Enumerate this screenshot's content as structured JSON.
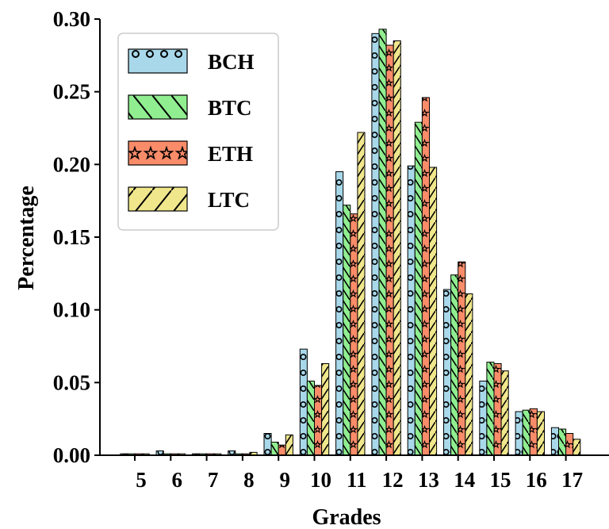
{
  "chart_data": {
    "type": "bar",
    "title": "",
    "xlabel": "Grades",
    "ylabel": "Percentage",
    "ylim": [
      0,
      0.3
    ],
    "yticks": [
      "0.00",
      "0.05",
      "0.10",
      "0.15",
      "0.20",
      "0.25",
      "0.30"
    ],
    "categories": [
      "5",
      "6",
      "7",
      "8",
      "9",
      "10",
      "11",
      "12",
      "13",
      "14",
      "15",
      "16",
      "17"
    ],
    "legend_position": "top-left",
    "grid": false,
    "series": [
      {
        "name": "BCH",
        "color": "#a8d8ea",
        "pattern": "circles",
        "values": [
          0.001,
          0.003,
          0.001,
          0.003,
          0.015,
          0.073,
          0.195,
          0.29,
          0.199,
          0.114,
          0.051,
          0.03,
          0.019
        ]
      },
      {
        "name": "BTC",
        "color": "#90ee90",
        "pattern": "backslash",
        "values": [
          0.001,
          0.001,
          0.001,
          0.001,
          0.009,
          0.051,
          0.172,
          0.293,
          0.229,
          0.124,
          0.064,
          0.031,
          0.018
        ]
      },
      {
        "name": "ETH",
        "color": "#fa8c6a",
        "pattern": "stars",
        "values": [
          0.001,
          0.001,
          0.001,
          0.001,
          0.007,
          0.048,
          0.166,
          0.282,
          0.246,
          0.133,
          0.063,
          0.032,
          0.015
        ]
      },
      {
        "name": "LTC",
        "color": "#f0e68c",
        "pattern": "slash",
        "values": [
          0.001,
          0.001,
          0.001,
          0.002,
          0.014,
          0.063,
          0.222,
          0.285,
          0.198,
          0.111,
          0.058,
          0.03,
          0.011
        ]
      }
    ]
  }
}
